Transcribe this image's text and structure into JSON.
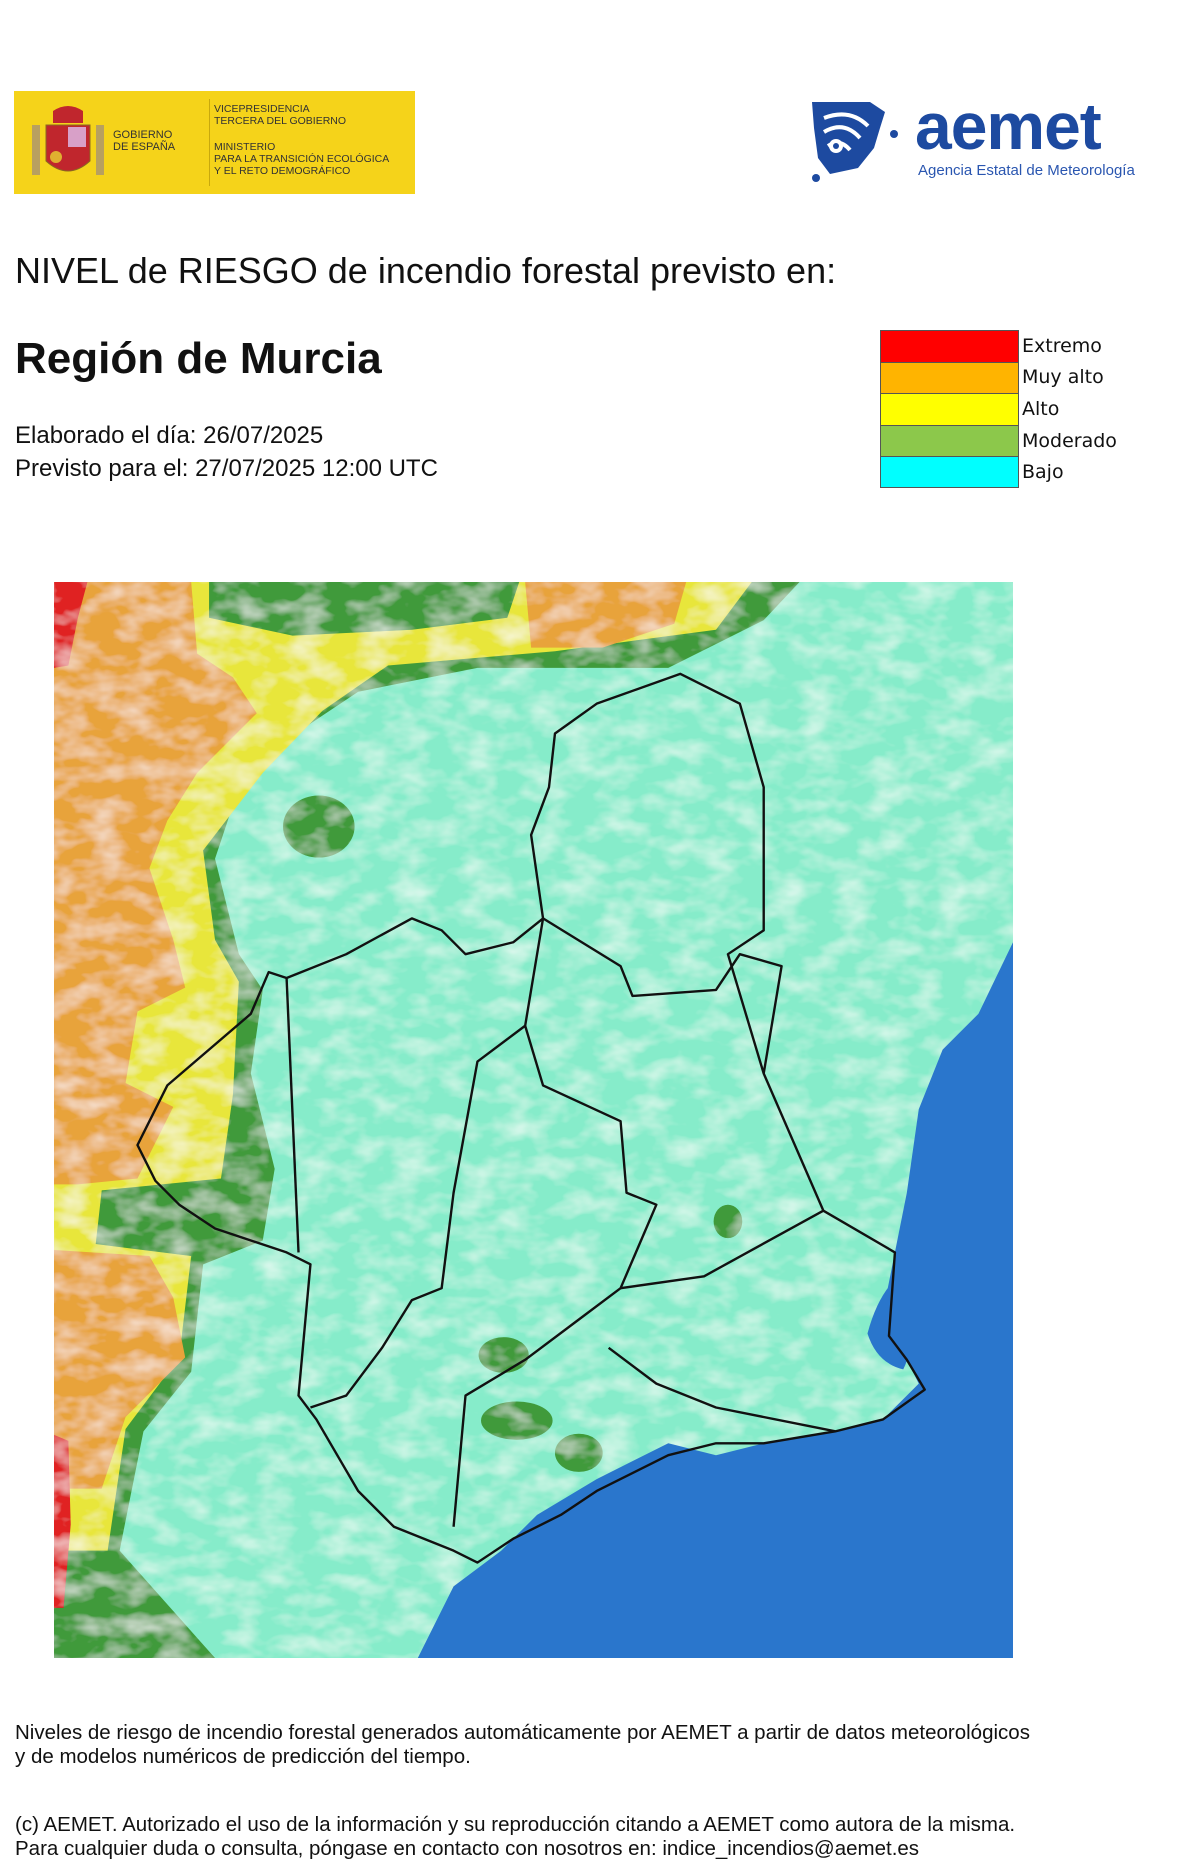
{
  "header": {
    "gov_logo": {
      "left_text": [
        "GOBIERNO",
        "DE ESPAÑA"
      ],
      "right_text": [
        "VICEPRESIDENCIA",
        "TERCERA DEL GOBIERNO",
        "MINISTERIO",
        "PARA LA TRANSICIÓN ECOLÓGICA",
        "Y EL RETO DEMOGRÁFICO"
      ]
    },
    "aemet_logo": {
      "word": "aemet",
      "subtitle": "Agencia Estatal de Meteorología",
      "color": "#1d4aa0"
    }
  },
  "title": "NIVEL de RIESGO de incendio forestal previsto en:",
  "region": "Región de Murcia",
  "elaborado": "Elaborado el día: 26/07/2025",
  "previsto": "Previsto para el: 27/07/2025 12:00 UTC",
  "legend": [
    {
      "label": "Extremo",
      "color": "#ff0000"
    },
    {
      "label": "Muy alto",
      "color": "#ffb400"
    },
    {
      "label": "Alto",
      "color": "#ffff00"
    },
    {
      "label": "Moderado",
      "color": "#8cc84b"
    },
    {
      "label": "Bajo",
      "color": "#00ffff"
    }
  ],
  "map": {
    "colors": {
      "bajo": "#86ecca",
      "moderado": "#3f9a3a",
      "alto": "#e8e63a",
      "muy_alto": "#e8a33a",
      "extremo": "#e02020",
      "sea": "#2a76cc",
      "border": "#111111"
    }
  },
  "footer": {
    "line1": "Niveles de riesgo de incendio forestal generados automáticamente por AEMET a partir de datos meteorológicos",
    "line2": "y de modelos numéricos de predicción del tiempo.",
    "line3": "(c) AEMET. Autorizado el uso de la información y su reproducción citando a AEMET como autora de la misma.",
    "line4": "Para cualquier duda o consulta, póngase en contacto con nosotros en: indice_incendios@aemet.es"
  }
}
